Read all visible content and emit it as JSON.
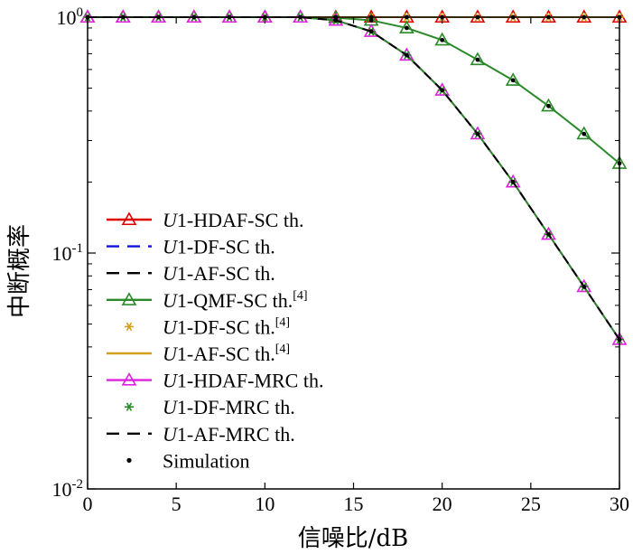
{
  "chart_data": {
    "type": "line",
    "xlabel": "信噪比/dB",
    "ylabel": "中断概率",
    "x": [
      0,
      2,
      4,
      6,
      8,
      10,
      12,
      14,
      16,
      18,
      20,
      22,
      24,
      26,
      28,
      30
    ],
    "xlim": [
      0,
      30
    ],
    "ylim": [
      0.01,
      1
    ],
    "yscale": "log",
    "xticks": [
      "0",
      "5",
      "10",
      "15",
      "20",
      "25",
      "30"
    ],
    "yticks": [
      {
        "base": "10",
        "exp": "-2"
      },
      {
        "base": "10",
        "exp": "-1"
      },
      {
        "base": "10",
        "exp": "0"
      }
    ],
    "grid": false,
    "legend_position": "bottom-left",
    "series": [
      {
        "name": "U1-HDAF-SC th.",
        "legend": {
          "ital": "U",
          "rest": "1-HDAF-SC th.",
          "sup": ""
        },
        "color": "#e00000",
        "dash": "solid",
        "marker": "triangle",
        "values": [
          1,
          1,
          1,
          1,
          1,
          1,
          1,
          1,
          1,
          1,
          1,
          1,
          1,
          1,
          1,
          1
        ]
      },
      {
        "name": "U1-DF-SC th.",
        "legend": {
          "ital": "U",
          "rest": "1-DF-SC th.",
          "sup": ""
        },
        "color": "#1010e0",
        "dash": "dashed",
        "marker": "none",
        "values": [
          1,
          1,
          1,
          1,
          1,
          1,
          1,
          1,
          1,
          1,
          1,
          1,
          1,
          1,
          1,
          1
        ]
      },
      {
        "name": "U1-AF-SC th.",
        "legend": {
          "ital": "U",
          "rest": "1-AF-SC th.",
          "sup": ""
        },
        "color": "#000000",
        "dash": "dashed",
        "marker": "none",
        "values": [
          1,
          1,
          1,
          1,
          1,
          1,
          1,
          1,
          1,
          1,
          1,
          1,
          1,
          1,
          1,
          1
        ]
      },
      {
        "name": "U1-QMF-SC th.[4]",
        "legend": {
          "ital": "U",
          "rest": "1-QMF-SC th.",
          "sup": "[4]"
        },
        "color": "#2a8a2a",
        "dash": "solid",
        "marker": "triangle",
        "values": [
          1,
          1,
          1,
          1,
          1,
          1,
          1,
          0.995,
          0.97,
          0.9,
          0.8,
          0.66,
          0.54,
          0.42,
          0.32,
          0.24
        ]
      },
      {
        "name": "U1-DF-SC th.[4]",
        "legend": {
          "ital": "U",
          "rest": "1-DF-SC th.",
          "sup": "[4]"
        },
        "color": "#d4a017",
        "dash": "solid",
        "marker": "star",
        "values": [
          1,
          1,
          1,
          1,
          1,
          1,
          1,
          1,
          1,
          1,
          1,
          1,
          1,
          1,
          1,
          1
        ]
      },
      {
        "name": "U1-AF-SC th.[4]",
        "legend": {
          "ital": "U",
          "rest": "1-AF-SC th.",
          "sup": "[4]"
        },
        "color": "#d4a017",
        "dash": "solid",
        "marker": "none",
        "values": [
          1,
          1,
          1,
          1,
          1,
          1,
          1,
          1,
          1,
          1,
          1,
          1,
          1,
          1,
          1,
          1
        ]
      },
      {
        "name": "U1-HDAF-MRC th.",
        "legend": {
          "ital": "U",
          "rest": "1-HDAF-MRC th.",
          "sup": ""
        },
        "color": "#e020e0",
        "dash": "solid",
        "marker": "triangle",
        "values": [
          1,
          1,
          1,
          1,
          1,
          1,
          1,
          0.97,
          0.87,
          0.69,
          0.49,
          0.32,
          0.2,
          0.12,
          0.072,
          0.043
        ]
      },
      {
        "name": "U1-DF-MRC th.",
        "legend": {
          "ital": "U",
          "rest": "1-DF-MRC th.",
          "sup": ""
        },
        "color": "#2a8a2a",
        "dash": "solid",
        "marker": "star",
        "values": [
          1,
          1,
          1,
          1,
          1,
          1,
          1,
          0.97,
          0.87,
          0.69,
          0.49,
          0.32,
          0.2,
          0.12,
          0.072,
          0.043
        ]
      },
      {
        "name": "U1-AF-MRC th.",
        "legend": {
          "ital": "U",
          "rest": "1-AF-MRC th.",
          "sup": ""
        },
        "color": "#000000",
        "dash": "dashed",
        "marker": "none",
        "values": [
          1,
          1,
          1,
          1,
          1,
          1,
          1,
          0.97,
          0.87,
          0.69,
          0.49,
          0.32,
          0.2,
          0.12,
          0.072,
          0.043
        ]
      }
    ],
    "simulation": {
      "name": "Simulation",
      "color": "#000000",
      "points": [
        [
          0,
          1
        ],
        [
          2,
          1
        ],
        [
          4,
          1
        ],
        [
          6,
          1
        ],
        [
          8,
          1
        ],
        [
          10,
          1
        ],
        [
          12,
          1
        ],
        [
          14,
          1
        ],
        [
          16,
          1
        ],
        [
          18,
          1
        ],
        [
          20,
          1
        ],
        [
          22,
          1
        ],
        [
          24,
          1
        ],
        [
          26,
          1
        ],
        [
          28,
          1
        ],
        [
          30,
          1
        ],
        [
          14,
          0.995
        ],
        [
          16,
          0.97
        ],
        [
          18,
          0.9
        ],
        [
          20,
          0.8
        ],
        [
          22,
          0.66
        ],
        [
          24,
          0.54
        ],
        [
          26,
          0.42
        ],
        [
          28,
          0.32
        ],
        [
          30,
          0.24
        ],
        [
          14,
          0.97
        ],
        [
          16,
          0.87
        ],
        [
          18,
          0.69
        ],
        [
          20,
          0.49
        ],
        [
          22,
          0.32
        ],
        [
          24,
          0.2
        ],
        [
          26,
          0.12
        ],
        [
          28,
          0.072
        ],
        [
          30,
          0.043
        ]
      ]
    }
  }
}
